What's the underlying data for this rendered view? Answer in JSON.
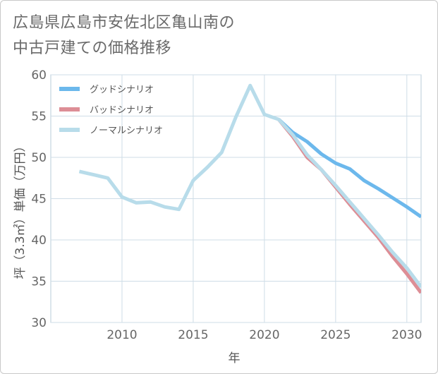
{
  "title_line1": "広島県広島市安佐北区亀山南の",
  "title_line2": "中古戸建ての価格推移",
  "chart_data": {
    "type": "line",
    "xlabel": "年",
    "ylabel": "坪（3.3㎡）単価（万円）",
    "xlim": [
      2005,
      2031
    ],
    "ylim": [
      30,
      60
    ],
    "xticks": [
      2010,
      2015,
      2020,
      2025,
      2030
    ],
    "yticks": [
      30,
      35,
      40,
      45,
      50,
      55,
      60
    ],
    "xtick_labels": [
      "2010",
      "2015",
      "2020",
      "2025",
      "2030"
    ],
    "ytick_labels": [
      "30",
      "35",
      "40",
      "45",
      "50",
      "55",
      "60"
    ],
    "grid": true,
    "legend_position": "top-left",
    "series": [
      {
        "name": "グッドシナリオ",
        "color": "#6cb8ec",
        "x": [
          2021,
          2022,
          2023,
          2024,
          2025,
          2026,
          2027,
          2028,
          2029,
          2030,
          2031
        ],
        "values": [
          54.6,
          53.0,
          51.9,
          50.4,
          49.3,
          48.6,
          47.2,
          46.2,
          45.1,
          44.0,
          42.8
        ]
      },
      {
        "name": "バッドシナリオ",
        "color": "#dd8e96",
        "x": [
          2021,
          2022,
          2023,
          2024,
          2025,
          2026,
          2027,
          2028,
          2029,
          2030,
          2031
        ],
        "values": [
          54.6,
          52.5,
          50.0,
          48.5,
          46.4,
          44.3,
          42.3,
          40.3,
          38.0,
          35.9,
          33.6
        ]
      },
      {
        "name": "ノーマルシナリオ",
        "color": "#b8dcea",
        "x": [
          2007,
          2008,
          2009,
          2010,
          2011,
          2012,
          2013,
          2014,
          2015,
          2016,
          2017,
          2018,
          2019,
          2020,
          2021,
          2022,
          2023,
          2024,
          2025,
          2026,
          2027,
          2028,
          2029,
          2030,
          2031
        ],
        "values": [
          48.3,
          47.9,
          47.5,
          45.2,
          44.5,
          44.6,
          44.0,
          43.7,
          47.2,
          48.8,
          50.6,
          54.9,
          58.7,
          55.2,
          54.6,
          52.7,
          50.3,
          48.5,
          46.6,
          44.6,
          42.6,
          40.6,
          38.5,
          36.6,
          34.3
        ]
      }
    ]
  }
}
